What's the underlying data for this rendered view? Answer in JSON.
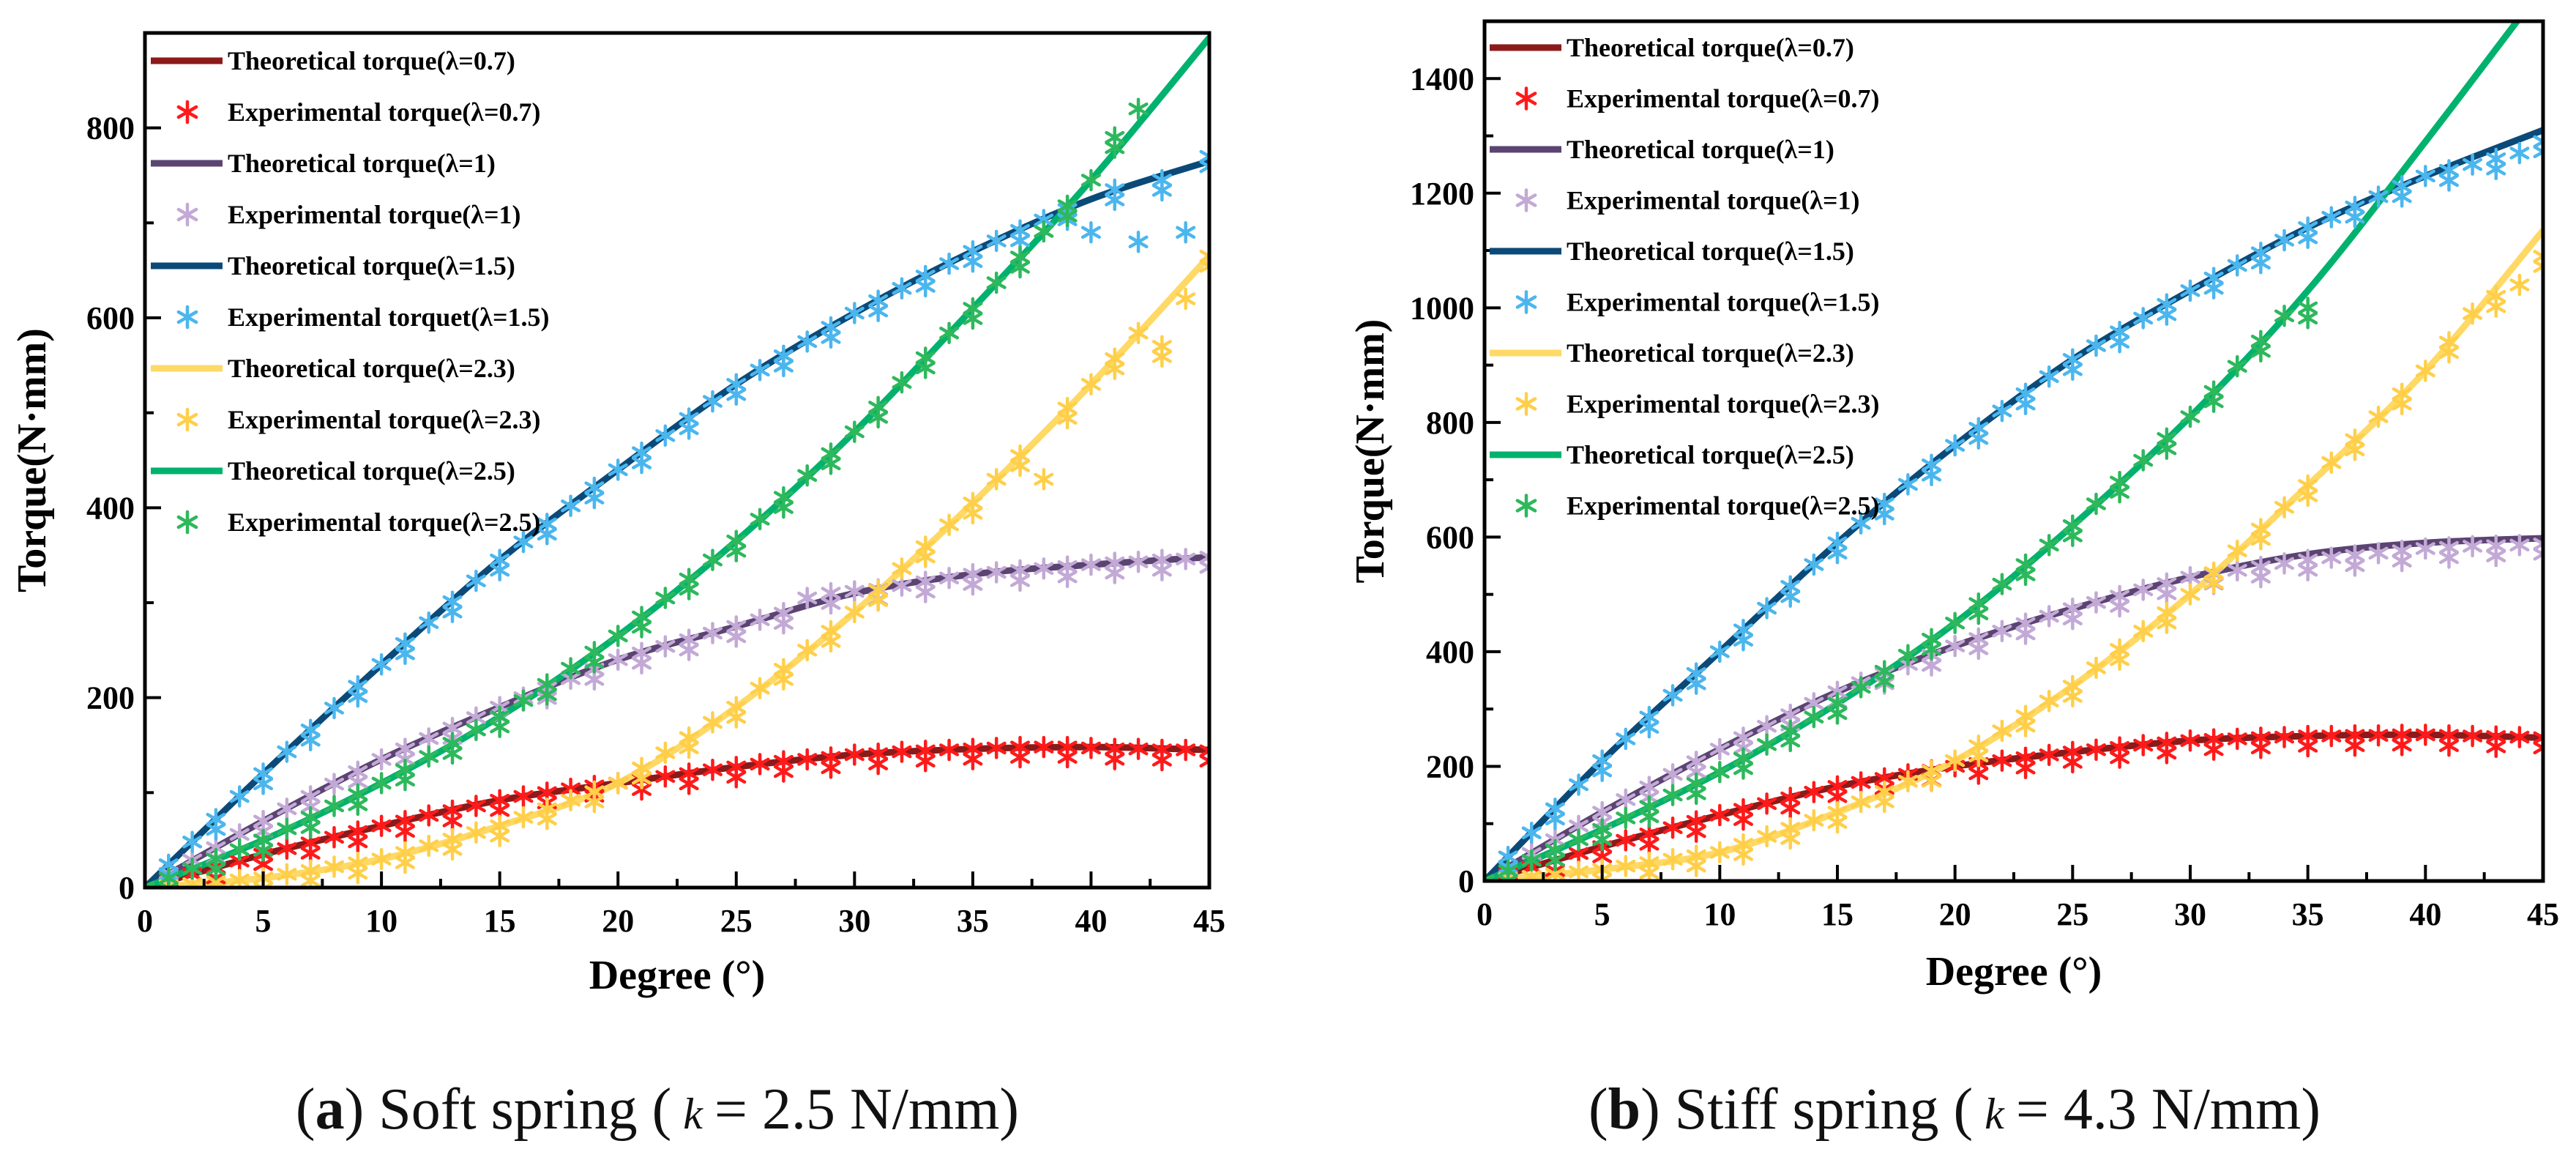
{
  "chart_data": [
    {
      "type": "line",
      "id": "a",
      "xlabel": "Degree (°)",
      "ylabel": "Torque(N·mm)",
      "xlim": [
        0,
        45
      ],
      "ylim": [
        0,
        900
      ],
      "xticks": [
        0,
        5,
        10,
        15,
        20,
        25,
        30,
        35,
        40,
        45
      ],
      "yticks": [
        0,
        200,
        400,
        600,
        800
      ],
      "legend_position": "top-left",
      "caption": {
        "label": "a",
        "pre": ") Soft spring (",
        "k": "k",
        "post": "= 2.5 N/mm)",
        "open": "("
      },
      "theory_x": [
        0,
        5,
        10,
        15,
        20,
        25,
        30,
        35,
        40,
        45
      ],
      "series": [
        {
          "name": "Theoretical torque(λ=0.7)",
          "kind": "line",
          "color": "#8B1A1A",
          "values": [
            0,
            35,
            65,
            92,
            110,
            127,
            140,
            146,
            148,
            145
          ]
        },
        {
          "name": "Experimental torque(λ=0.7)",
          "kind": "scatter",
          "color": "#FF1A1A",
          "values": [
            0,
            7,
            14,
            21,
            28,
            35,
            41,
            47,
            53,
            59,
            65,
            70,
            76,
            81,
            86,
            92,
            96,
            100,
            104,
            107,
            110,
            114,
            117,
            120,
            124,
            127,
            130,
            133,
            135,
            137,
            140,
            141,
            143,
            144,
            145,
            146,
            147,
            148,
            148,
            148,
            147,
            146,
            146,
            145,
            145,
            144
          ]
        },
        {
          "name": "Theoretical torque(λ=1)",
          "kind": "line",
          "color": "#5B4472",
          "values": [
            0,
            70,
            135,
            190,
            240,
            275,
            310,
            330,
            340,
            348
          ]
        },
        {
          "name": "Experimental torque(λ=1)",
          "kind": "scatter",
          "color": "#C3A9D6",
          "values": [
            0,
            15,
            29,
            42,
            56,
            70,
            83,
            96,
            109,
            122,
            135,
            146,
            157,
            168,
            179,
            190,
            200,
            210,
            220,
            230,
            240,
            247,
            254,
            261,
            268,
            275,
            282,
            289,
            305,
            310,
            312,
            314,
            318,
            322,
            326,
            330,
            332,
            334,
            336,
            338,
            340,
            342,
            343,
            345,
            346,
            348
          ]
        },
        {
          "name": "Theoretical torque(λ=1.5)",
          "kind": "line",
          "color": "#0B4A78",
          "values": [
            0,
            120,
            235,
            345,
            440,
            530,
            605,
            670,
            725,
            765
          ]
        },
        {
          "name": "Experimental torquet(λ=1.5)",
          "kind": "scatter",
          "color": "#4BB6EE",
          "values": [
            0,
            24,
            48,
            72,
            96,
            120,
            143,
            166,
            189,
            212,
            235,
            257,
            279,
            301,
            323,
            345,
            364,
            383,
            402,
            421,
            440,
            458,
            476,
            494,
            512,
            530,
            545,
            560,
            575,
            590,
            605,
            618,
            631,
            644,
            657,
            670,
            681,
            692,
            703,
            714,
            690,
            735,
            680,
            745,
            690,
            770
          ]
        },
        {
          "name": "Theoretical torque(λ=2.3)",
          "kind": "line",
          "color": "#FFD966",
          "values": [
            0,
            10,
            30,
            65,
            110,
            190,
            290,
            405,
            530,
            665
          ]
        },
        {
          "name": "Experimental torque(λ=2.3)",
          "kind": "scatter",
          "color": "#FFCF4A",
          "values": [
            0,
            2,
            4,
            6,
            8,
            10,
            14,
            18,
            22,
            26,
            30,
            37,
            44,
            51,
            58,
            65,
            74,
            83,
            92,
            101,
            110,
            126,
            142,
            158,
            174,
            190,
            210,
            230,
            250,
            270,
            290,
            313,
            336,
            359,
            382,
            405,
            430,
            455,
            430,
            505,
            530,
            557,
            584,
            570,
            620,
            665
          ]
        },
        {
          "name": "Theoretical torque(λ=2.5)",
          "kind": "line",
          "color": "#00B26E",
          "values": [
            0,
            50,
            110,
            180,
            265,
            365,
            480,
            610,
            745,
            895
          ]
        },
        {
          "name": "Experimental torque(λ=2.5)",
          "kind": "scatter",
          "color": "#2DB85C",
          "values": [
            0,
            10,
            20,
            30,
            40,
            50,
            62,
            74,
            86,
            98,
            110,
            124,
            138,
            152,
            166,
            180,
            197,
            214,
            231,
            248,
            265,
            285,
            305,
            325,
            345,
            365,
            388,
            411,
            434,
            457,
            480,
            506,
            532,
            558,
            584,
            610,
            637,
            664,
            691,
            718,
            745,
            790,
            820
          ]
        }
      ]
    },
    {
      "type": "line",
      "id": "b",
      "xlabel": "Degree (°)",
      "ylabel": "Torque(N·mm)",
      "xlim": [
        0,
        45
      ],
      "ylim": [
        0,
        1500
      ],
      "xticks": [
        0,
        5,
        10,
        15,
        20,
        25,
        30,
        35,
        40,
        45
      ],
      "yticks": [
        0,
        200,
        400,
        600,
        800,
        1000,
        1200,
        1400
      ],
      "legend_position": "top-left",
      "caption": {
        "label": "b",
        "pre": ") Stiff spring (",
        "k": "k",
        "post": "= 4.3 N/mm)",
        "open": "("
      },
      "theory_x": [
        0,
        5,
        10,
        15,
        20,
        25,
        30,
        35,
        40,
        45
      ],
      "series": [
        {
          "name": "Theoretical torque(λ=0.7)",
          "kind": "line",
          "color": "#8B1A1A",
          "values": [
            0,
            60,
            115,
            165,
            200,
            225,
            245,
            253,
            255,
            250
          ]
        },
        {
          "name": "Experimental torque(λ=0.7)",
          "kind": "scatter",
          "color": "#FF1A1A",
          "values": [
            0,
            12,
            24,
            36,
            48,
            60,
            71,
            82,
            93,
            104,
            115,
            125,
            135,
            145,
            155,
            165,
            172,
            179,
            186,
            193,
            200,
            205,
            210,
            215,
            220,
            225,
            229,
            233,
            237,
            241,
            245,
            247,
            248,
            250,
            251,
            253,
            253,
            254,
            254,
            255,
            255,
            254,
            253,
            252,
            251,
            250
          ]
        },
        {
          "name": "Theoretical torque(λ=1)",
          "kind": "line",
          "color": "#5B4472",
          "values": [
            0,
            120,
            230,
            330,
            410,
            475,
            530,
            570,
            590,
            598
          ]
        },
        {
          "name": "Experimental torque(λ=1)",
          "kind": "scatter",
          "color": "#C3A9D6",
          "values": [
            0,
            24,
            48,
            72,
            96,
            120,
            142,
            164,
            186,
            208,
            230,
            250,
            270,
            290,
            310,
            330,
            346,
            362,
            378,
            394,
            410,
            423,
            436,
            449,
            462,
            475,
            486,
            497,
            508,
            519,
            530,
            536,
            542,
            548,
            554,
            560,
            564,
            568,
            572,
            576,
            580,
            582,
            584,
            585,
            586,
            588
          ]
        },
        {
          "name": "Theoretical torque(λ=1.5)",
          "kind": "line",
          "color": "#0B4A78",
          "values": [
            0,
            210,
            400,
            590,
            760,
            910,
            1030,
            1140,
            1230,
            1310
          ]
        },
        {
          "name": "Experimental torque(λ=1.5)",
          "kind": "scatter",
          "color": "#4BB6EE",
          "values": [
            0,
            42,
            84,
            126,
            168,
            210,
            248,
            286,
            324,
            362,
            400,
            438,
            476,
            514,
            552,
            590,
            624,
            658,
            692,
            726,
            760,
            790,
            820,
            850,
            880,
            910,
            934,
            958,
            982,
            1006,
            1030,
            1052,
            1074,
            1096,
            1118,
            1140,
            1158,
            1176,
            1194,
            1212,
            1230,
            1240,
            1250,
            1260,
            1270,
            1290
          ]
        },
        {
          "name": "Theoretical torque(λ=2.3)",
          "kind": "line",
          "color": "#FFD966",
          "values": [
            0,
            20,
            50,
            120,
            210,
            340,
            500,
            690,
            890,
            1135
          ]
        },
        {
          "name": "Experimental torque(λ=2.3)",
          "kind": "scatter",
          "color": "#FFCF4A",
          "values": [
            0,
            4,
            8,
            12,
            16,
            20,
            26,
            32,
            38,
            44,
            50,
            64,
            78,
            92,
            106,
            120,
            138,
            156,
            174,
            192,
            210,
            236,
            262,
            288,
            314,
            340,
            372,
            404,
            436,
            468,
            500,
            538,
            576,
            614,
            652,
            690,
            730,
            770,
            810,
            850,
            890,
            940,
            990,
            1020,
            1040,
            1090
          ]
        },
        {
          "name": "Theoretical torque(λ=2.5)",
          "kind": "line",
          "color": "#00B26E",
          "values": [
            0,
            90,
            190,
            310,
            450,
            620,
            810,
            1030,
            1290,
            1560
          ]
        },
        {
          "name": "Experimental torque(λ=2.5)",
          "kind": "scatter",
          "color": "#2DB85C",
          "values": [
            0,
            18,
            36,
            54,
            72,
            90,
            110,
            130,
            150,
            170,
            190,
            214,
            238,
            262,
            286,
            310,
            338,
            366,
            394,
            422,
            450,
            484,
            518,
            552,
            586,
            620,
            658,
            696,
            734,
            772,
            810,
            854,
            898,
            942,
            986,
            1000
          ]
        }
      ]
    }
  ]
}
